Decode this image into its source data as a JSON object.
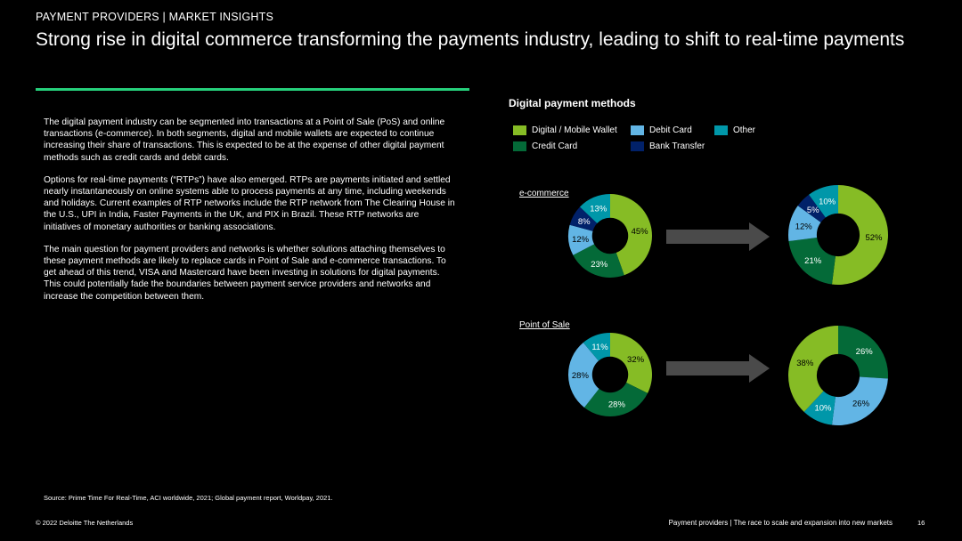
{
  "header": {
    "eyebrow": "PAYMENT PROVIDERS | MARKET INSIGHTS",
    "title": "Strong rise in digital commerce transforming the payments industry, leading to shift to real-time payments"
  },
  "body": {
    "paragraphs": [
      "The digital payment industry can be segmented into transactions at a Point of Sale (PoS) and online transactions (e-commerce). In both segments, digital and mobile wallets are expected to continue increasing their share of transactions. This is expected to be at the expense of other digital payment methods such as credit cards and debit cards.",
      "Options for real-time payments (“RTPs”) have also emerged. RTPs are payments initiated and settled nearly instantaneously on online systems able to process payments at any time, including weekends and holidays. Current examples of RTP networks include the RTP network from The Clearing House in the U.S., UPI in India, Faster Payments in the UK, and PIX in Brazil. These RTP networks are initiatives of monetary authorities or banking associations.",
      "The main question for payment providers and networks is whether solutions attaching themselves to these payment methods are likely to replace cards in Point of Sale and e-commerce transactions. To get ahead of this trend, VISA and Mastercard have been investing in solutions for digital payments. This could potentially fade the boundaries between payment service providers and networks and increase the competition between them."
    ]
  },
  "chart_data": {
    "type": "pie",
    "title": "Digital payment methods",
    "legend": [
      {
        "name": "Digital / Mobile Wallet",
        "color": "#86bc25"
      },
      {
        "name": "Debit Card",
        "color": "#62b5e5"
      },
      {
        "name": "Other",
        "color": "#0097a9"
      },
      {
        "name": "Credit Card",
        "color": "#046a38"
      },
      {
        "name": "Bank Transfer",
        "color": "#012169"
      }
    ],
    "sections": [
      {
        "label": "e-commerce",
        "donuts": [
          {
            "slices": [
              {
                "category": "Digital / Mobile Wallet",
                "value": 45,
                "label": "45%"
              },
              {
                "category": "Credit Card",
                "value": 23,
                "label": "23%"
              },
              {
                "category": "Debit Card",
                "value": 12,
                "label": "12%"
              },
              {
                "category": "Bank Transfer",
                "value": 8,
                "label": "8%"
              },
              {
                "category": "Other",
                "value": 13,
                "label": "13%"
              }
            ]
          },
          {
            "slices": [
              {
                "category": "Digital / Mobile Wallet",
                "value": 52,
                "label": "52%"
              },
              {
                "category": "Credit Card",
                "value": 21,
                "label": "21%"
              },
              {
                "category": "Debit Card",
                "value": 12,
                "label": "12%"
              },
              {
                "category": "Bank Transfer",
                "value": 5,
                "label": "5%"
              },
              {
                "category": "Other",
                "value": 10,
                "label": "10%"
              }
            ]
          }
        ]
      },
      {
        "label": "Point of Sale",
        "donuts": [
          {
            "slices": [
              {
                "category": "Digital / Mobile Wallet",
                "value": 32,
                "label": "32%"
              },
              {
                "category": "Credit Card",
                "value": 28,
                "label": "28%"
              },
              {
                "category": "Debit Card",
                "value": 28,
                "label": "28%"
              },
              {
                "category": "Other",
                "value": 11,
                "label": "11%"
              }
            ]
          },
          {
            "slices": [
              {
                "category": "Credit Card",
                "value": 26,
                "label": "26%"
              },
              {
                "category": "Debit Card",
                "value": 26,
                "label": "26%"
              },
              {
                "category": "Other",
                "value": 10,
                "label": "10%"
              },
              {
                "category": "Digital / Mobile Wallet",
                "value": 38,
                "label": "38%"
              }
            ]
          }
        ]
      }
    ]
  },
  "source": "Source: Prime Time For Real-Time, ACI worldwide, 2021; Global payment report, Worldpay, 2021.",
  "footer": {
    "copyright": "© 2022 Deloitte The Netherlands",
    "doc_title": "Payment providers | The race to scale and expansion into new markets",
    "page_number": "16"
  }
}
